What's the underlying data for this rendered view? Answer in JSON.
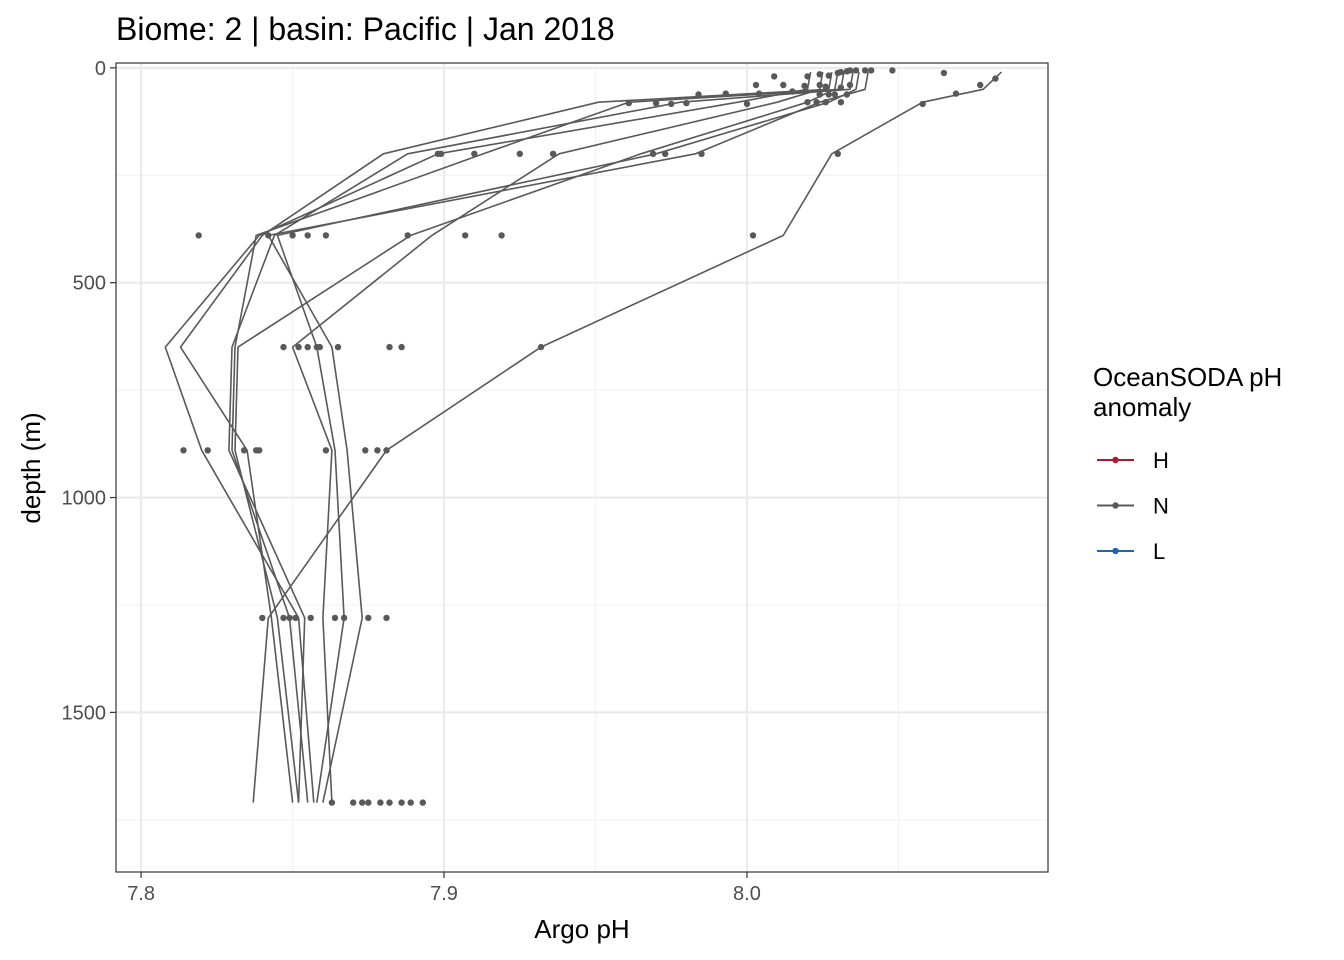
{
  "chart_data": {
    "type": "line",
    "title": "Biome: 2 | basin: Pacific  | Jan 2018",
    "xlabel": "Argo pH",
    "ylabel": "depth (m)",
    "xlim": [
      7.799,
      8.098
    ],
    "ylim": [
      0,
      1800
    ],
    "y_reversed": true,
    "x_ticks": [
      7.8,
      7.9,
      8.0
    ],
    "x_tick_labels": [
      "7.8",
      "7.9",
      "8.0"
    ],
    "y_ticks": [
      0,
      500,
      1000,
      1500
    ],
    "y_tick_labels": [
      "0",
      "500",
      "1000",
      "1500"
    ],
    "grid": true,
    "series_color": "#595959",
    "legend": {
      "title_lines": [
        "OceanSODA pH",
        "anomaly"
      ],
      "position": "right",
      "entries": [
        {
          "label": "H",
          "color": "#B2182B"
        },
        {
          "label": "N",
          "color": "#595959"
        },
        {
          "label": "L",
          "color": "#2166AC"
        }
      ]
    },
    "profiles": [
      {
        "x": [
          8.021,
          8.02,
          7.997,
          7.898,
          7.839,
          7.808,
          7.82,
          7.852,
          7.857
        ],
        "y": [
          10,
          50,
          80,
          200,
          390,
          650,
          890,
          1280,
          1710
        ]
      },
      {
        "x": [
          8.028,
          8.027,
          7.951,
          7.88,
          7.84,
          7.813,
          7.835,
          7.843,
          7.85
        ],
        "y": [
          10,
          50,
          80,
          200,
          390,
          650,
          890,
          1280,
          1710
        ]
      },
      {
        "x": [
          8.035,
          8.034,
          7.978,
          7.888,
          7.844,
          7.83,
          7.829,
          7.854,
          7.852
        ],
        "y": [
          10,
          50,
          80,
          200,
          390,
          650,
          890,
          1280,
          1710
        ]
      },
      {
        "x": [
          8.032,
          8.031,
          7.961,
          7.913,
          7.838,
          7.831,
          7.83,
          7.849,
          7.855
        ],
        "y": [
          10,
          50,
          80,
          200,
          390,
          650,
          890,
          1280,
          1710
        ]
      },
      {
        "x": [
          8.04,
          8.039,
          8.024,
          7.983,
          7.842,
          7.863,
          7.868,
          7.873,
          7.86
        ],
        "y": [
          10,
          50,
          80,
          200,
          390,
          650,
          890,
          1280,
          1710
        ]
      },
      {
        "x": [
          8.037,
          8.036,
          8.027,
          7.97,
          7.845,
          7.858,
          7.864,
          7.867,
          7.858
        ],
        "y": [
          10,
          50,
          80,
          200,
          390,
          650,
          890,
          1280,
          1710
        ]
      },
      {
        "x": [
          8.03,
          8.029,
          8.02,
          7.965,
          7.889,
          7.832,
          7.831,
          7.845,
          7.852
        ],
        "y": [
          10,
          50,
          80,
          200,
          390,
          650,
          890,
          1280,
          1710
        ]
      },
      {
        "x": [
          8.025,
          8.024,
          8.01,
          7.938,
          7.896,
          7.85,
          7.863,
          7.86,
          7.863
        ],
        "y": [
          10,
          50,
          80,
          200,
          390,
          650,
          890,
          1280,
          1710
        ]
      },
      {
        "x": [
          8.084,
          8.078,
          8.058,
          8.028,
          8.012,
          7.932,
          7.881,
          7.842,
          7.837
        ],
        "y": [
          10,
          50,
          80,
          200,
          390,
          650,
          890,
          1280,
          1710
        ]
      }
    ],
    "points": [
      {
        "x": 8.009,
        "y": 20
      },
      {
        "x": 8.02,
        "y": 20
      },
      {
        "x": 8.024,
        "y": 15
      },
      {
        "x": 8.027,
        "y": 18
      },
      {
        "x": 8.03,
        "y": 12
      },
      {
        "x": 8.031,
        "y": 10
      },
      {
        "x": 8.033,
        "y": 8
      },
      {
        "x": 8.034,
        "y": 6
      },
      {
        "x": 8.036,
        "y": 6
      },
      {
        "x": 8.039,
        "y": 6
      },
      {
        "x": 8.041,
        "y": 6
      },
      {
        "x": 8.048,
        "y": 6
      },
      {
        "x": 8.065,
        "y": 12
      },
      {
        "x": 8.082,
        "y": 25
      },
      {
        "x": 8.077,
        "y": 40
      },
      {
        "x": 8.069,
        "y": 60
      },
      {
        "x": 8.058,
        "y": 84
      },
      {
        "x": 8.003,
        "y": 40
      },
      {
        "x": 8.012,
        "y": 40
      },
      {
        "x": 8.019,
        "y": 42
      },
      {
        "x": 8.024,
        "y": 40
      },
      {
        "x": 8.026,
        "y": 44
      },
      {
        "x": 8.031,
        "y": 46
      },
      {
        "x": 8.015,
        "y": 55
      },
      {
        "x": 8.004,
        "y": 60
      },
      {
        "x": 7.993,
        "y": 60
      },
      {
        "x": 7.984,
        "y": 62
      },
      {
        "x": 8.024,
        "y": 62
      },
      {
        "x": 8.027,
        "y": 62
      },
      {
        "x": 8.029,
        "y": 62
      },
      {
        "x": 8.033,
        "y": 62
      },
      {
        "x": 8.034,
        "y": 40
      },
      {
        "x": 7.961,
        "y": 82
      },
      {
        "x": 7.97,
        "y": 82
      },
      {
        "x": 7.975,
        "y": 84
      },
      {
        "x": 7.98,
        "y": 82
      },
      {
        "x": 8.0,
        "y": 84
      },
      {
        "x": 8.02,
        "y": 80
      },
      {
        "x": 8.023,
        "y": 80
      },
      {
        "x": 8.026,
        "y": 80
      },
      {
        "x": 8.031,
        "y": 80
      },
      {
        "x": 7.898,
        "y": 200
      },
      {
        "x": 7.899,
        "y": 200
      },
      {
        "x": 7.91,
        "y": 200
      },
      {
        "x": 7.925,
        "y": 200
      },
      {
        "x": 7.936,
        "y": 200
      },
      {
        "x": 7.969,
        "y": 200
      },
      {
        "x": 7.973,
        "y": 200
      },
      {
        "x": 7.985,
        "y": 200
      },
      {
        "x": 8.03,
        "y": 200
      },
      {
        "x": 7.819,
        "y": 390
      },
      {
        "x": 7.842,
        "y": 390
      },
      {
        "x": 7.85,
        "y": 390
      },
      {
        "x": 7.855,
        "y": 390
      },
      {
        "x": 7.861,
        "y": 390
      },
      {
        "x": 7.888,
        "y": 390
      },
      {
        "x": 7.907,
        "y": 390
      },
      {
        "x": 7.919,
        "y": 390
      },
      {
        "x": 8.002,
        "y": 390
      },
      {
        "x": 7.847,
        "y": 650
      },
      {
        "x": 7.852,
        "y": 650
      },
      {
        "x": 7.855,
        "y": 650
      },
      {
        "x": 7.858,
        "y": 650
      },
      {
        "x": 7.859,
        "y": 650
      },
      {
        "x": 7.865,
        "y": 650
      },
      {
        "x": 7.882,
        "y": 650
      },
      {
        "x": 7.886,
        "y": 650
      },
      {
        "x": 7.932,
        "y": 650
      },
      {
        "x": 7.814,
        "y": 890
      },
      {
        "x": 7.822,
        "y": 890
      },
      {
        "x": 7.834,
        "y": 890
      },
      {
        "x": 7.838,
        "y": 890
      },
      {
        "x": 7.839,
        "y": 890
      },
      {
        "x": 7.861,
        "y": 890
      },
      {
        "x": 7.874,
        "y": 890
      },
      {
        "x": 7.878,
        "y": 890
      },
      {
        "x": 7.881,
        "y": 890
      },
      {
        "x": 7.84,
        "y": 1280
      },
      {
        "x": 7.847,
        "y": 1280
      },
      {
        "x": 7.849,
        "y": 1280
      },
      {
        "x": 7.851,
        "y": 1280
      },
      {
        "x": 7.856,
        "y": 1280
      },
      {
        "x": 7.864,
        "y": 1280
      },
      {
        "x": 7.867,
        "y": 1280
      },
      {
        "x": 7.875,
        "y": 1280
      },
      {
        "x": 7.881,
        "y": 1280
      },
      {
        "x": 7.863,
        "y": 1710
      },
      {
        "x": 7.87,
        "y": 1710
      },
      {
        "x": 7.873,
        "y": 1710
      },
      {
        "x": 7.875,
        "y": 1710
      },
      {
        "x": 7.879,
        "y": 1710
      },
      {
        "x": 7.882,
        "y": 1710
      },
      {
        "x": 7.886,
        "y": 1710
      },
      {
        "x": 7.889,
        "y": 1710
      },
      {
        "x": 7.893,
        "y": 1710
      }
    ]
  }
}
